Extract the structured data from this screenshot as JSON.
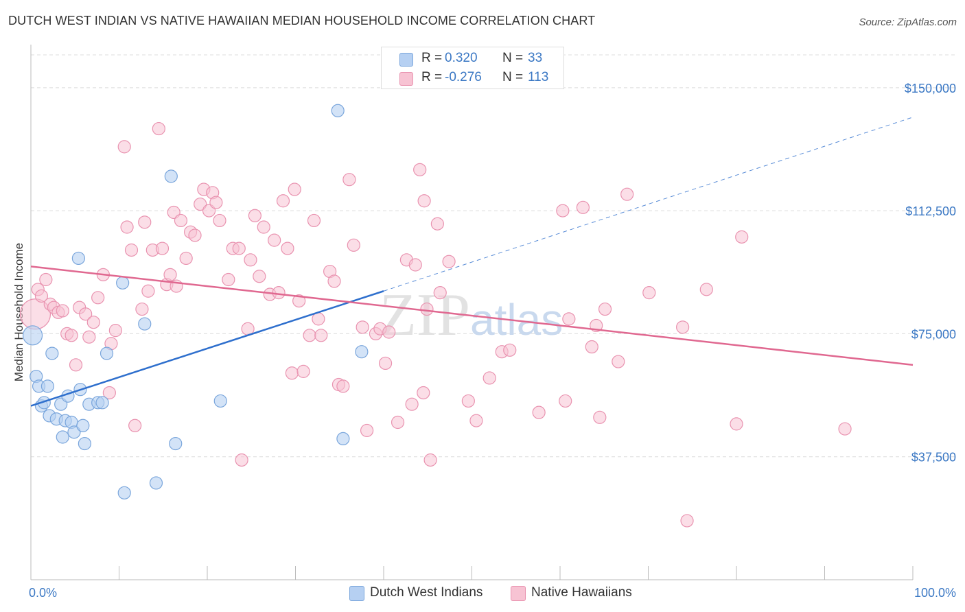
{
  "title": "DUTCH WEST INDIAN VS NATIVE HAWAIIAN MEDIAN HOUSEHOLD INCOME CORRELATION CHART",
  "source": "Source: ZipAtlas.com",
  "watermark": "ZIPatlas",
  "colors": {
    "blue_fill": "#b6d0f2",
    "blue_stroke": "#7aa6dc",
    "blue_line": "#2e6fcd",
    "pink_fill": "#f7c3d3",
    "pink_stroke": "#e993b0",
    "pink_line": "#e06890",
    "tick_text": "#3b78c4",
    "grid": "#dcdcdc"
  },
  "legend_top": {
    "rows": [
      {
        "r_label": "R =",
        "r_value": "0.320",
        "n_label": "N =",
        "n_value": "33",
        "series": "blue"
      },
      {
        "r_label": "R =",
        "r_value": "-0.276",
        "n_label": "N =",
        "n_value": "113",
        "series": "pink"
      }
    ]
  },
  "legend_bottom": {
    "items": [
      {
        "label": "Dutch West Indians",
        "series": "blue"
      },
      {
        "label": "Native Hawaiians",
        "series": "pink"
      }
    ]
  },
  "chart_data": {
    "type": "scatter",
    "title": "DUTCH WEST INDIAN VS NATIVE HAWAIIAN MEDIAN HOUSEHOLD INCOME CORRELATION CHART",
    "xlabel": "",
    "ylabel": "Median Household Income",
    "xlim": [
      0,
      100
    ],
    "ylim": [
      0,
      160000
    ],
    "x_tick_labels": [
      "0.0%",
      "100.0%"
    ],
    "y_ticks": [
      37500,
      75000,
      112500,
      150000
    ],
    "y_tick_labels": [
      "$37,500",
      "$75,000",
      "$112,500",
      "$150,000"
    ],
    "grid": true,
    "legend_placement": "top-center",
    "series": [
      {
        "name": "Dutch West Indians",
        "color": "blue",
        "points": [
          [
            0.2,
            74500
          ],
          [
            0.6,
            62000
          ],
          [
            0.9,
            59000
          ],
          [
            1.2,
            53000
          ],
          [
            1.5,
            54000
          ],
          [
            1.9,
            59000
          ],
          [
            2.1,
            50000
          ],
          [
            2.4,
            69000
          ],
          [
            2.9,
            49000
          ],
          [
            3.4,
            53500
          ],
          [
            3.6,
            43500
          ],
          [
            3.9,
            48500
          ],
          [
            4.2,
            56000
          ],
          [
            4.6,
            48000
          ],
          [
            4.9,
            45000
          ],
          [
            5.4,
            98000
          ],
          [
            5.6,
            58000
          ],
          [
            5.9,
            47000
          ],
          [
            6.1,
            41500
          ],
          [
            6.6,
            53500
          ],
          [
            7.6,
            54000
          ],
          [
            8.1,
            54000
          ],
          [
            8.6,
            69000
          ],
          [
            10.4,
            90500
          ],
          [
            10.6,
            26500
          ],
          [
            12.9,
            78000
          ],
          [
            14.2,
            29500
          ],
          [
            15.9,
            123000
          ],
          [
            16.4,
            41500
          ],
          [
            21.5,
            54500
          ],
          [
            34.8,
            143000
          ],
          [
            35.4,
            43000
          ],
          [
            37.5,
            69500
          ]
        ],
        "trend": {
          "x_start": 0,
          "y_start": 53000,
          "x_end": 40,
          "y_end": 88000,
          "dashed_to_x": 100,
          "dashed_to_y": 141000
        }
      },
      {
        "name": "Native Hawaiians",
        "color": "pink",
        "points": [
          [
            0.5,
            81000
          ],
          [
            0.8,
            88500
          ],
          [
            1.2,
            86500
          ],
          [
            1.7,
            91500
          ],
          [
            2.2,
            84000
          ],
          [
            2.6,
            83000
          ],
          [
            3.1,
            81500
          ],
          [
            3.6,
            82000
          ],
          [
            4.1,
            75000
          ],
          [
            4.6,
            74500
          ],
          [
            5.1,
            65500
          ],
          [
            5.5,
            83000
          ],
          [
            6.2,
            81000
          ],
          [
            6.6,
            74000
          ],
          [
            7.1,
            78500
          ],
          [
            7.6,
            86000
          ],
          [
            8.2,
            93000
          ],
          [
            8.9,
            57000
          ],
          [
            9.1,
            72000
          ],
          [
            9.6,
            76000
          ],
          [
            10.6,
            132000
          ],
          [
            10.9,
            107500
          ],
          [
            11.4,
            100500
          ],
          [
            11.8,
            47000
          ],
          [
            12.6,
            82500
          ],
          [
            12.9,
            109000
          ],
          [
            13.3,
            88000
          ],
          [
            13.8,
            100500
          ],
          [
            14.5,
            137500
          ],
          [
            14.9,
            101000
          ],
          [
            15.4,
            90000
          ],
          [
            15.8,
            93000
          ],
          [
            16.2,
            112000
          ],
          [
            16.5,
            89500
          ],
          [
            17.0,
            109500
          ],
          [
            17.6,
            98000
          ],
          [
            18.1,
            106000
          ],
          [
            18.6,
            105000
          ],
          [
            19.2,
            114500
          ],
          [
            19.6,
            119000
          ],
          [
            20.2,
            112500
          ],
          [
            20.6,
            118000
          ],
          [
            21.0,
            115000
          ],
          [
            21.4,
            109500
          ],
          [
            22.4,
            91500
          ],
          [
            22.9,
            101000
          ],
          [
            23.6,
            101000
          ],
          [
            23.9,
            36500
          ],
          [
            24.6,
            76500
          ],
          [
            24.9,
            97500
          ],
          [
            25.4,
            111000
          ],
          [
            25.9,
            92500
          ],
          [
            26.4,
            107500
          ],
          [
            27.1,
            87000
          ],
          [
            27.6,
            103500
          ],
          [
            28.1,
            87500
          ],
          [
            28.6,
            115500
          ],
          [
            29.1,
            101000
          ],
          [
            29.6,
            63000
          ],
          [
            29.9,
            119000
          ],
          [
            30.4,
            85000
          ],
          [
            30.9,
            63500
          ],
          [
            31.6,
            74500
          ],
          [
            32.1,
            109500
          ],
          [
            32.6,
            79500
          ],
          [
            32.9,
            74500
          ],
          [
            33.9,
            94000
          ],
          [
            34.4,
            91000
          ],
          [
            34.9,
            59500
          ],
          [
            35.4,
            59000
          ],
          [
            36.1,
            122000
          ],
          [
            36.6,
            102000
          ],
          [
            37.6,
            77000
          ],
          [
            38.1,
            45500
          ],
          [
            39.1,
            75000
          ],
          [
            39.6,
            76500
          ],
          [
            40.2,
            66000
          ],
          [
            40.6,
            75500
          ],
          [
            41.6,
            48000
          ],
          [
            42.6,
            97500
          ],
          [
            43.2,
            53500
          ],
          [
            43.6,
            96000
          ],
          [
            44.1,
            125000
          ],
          [
            44.5,
            57000
          ],
          [
            44.6,
            115500
          ],
          [
            44.9,
            82500
          ],
          [
            45.3,
            36500
          ],
          [
            46.1,
            108500
          ],
          [
            46.4,
            87500
          ],
          [
            47.4,
            97000
          ],
          [
            49.6,
            54500
          ],
          [
            50.5,
            48500
          ],
          [
            52.0,
            61500
          ],
          [
            53.4,
            69500
          ],
          [
            54.3,
            70000
          ],
          [
            57.6,
            51000
          ],
          [
            60.3,
            112500
          ],
          [
            60.6,
            54500
          ],
          [
            61.0,
            79500
          ],
          [
            62.6,
            113500
          ],
          [
            63.6,
            71000
          ],
          [
            64.1,
            77500
          ],
          [
            64.5,
            49500
          ],
          [
            65.1,
            82500
          ],
          [
            66.6,
            66500
          ],
          [
            67.6,
            117500
          ],
          [
            70.1,
            87500
          ],
          [
            73.9,
            77000
          ],
          [
            74.4,
            18000
          ],
          [
            76.6,
            88500
          ],
          [
            80.0,
            47500
          ],
          [
            80.6,
            104500
          ],
          [
            92.3,
            46000
          ]
        ],
        "trend": {
          "x_start": 0,
          "y_start": 95500,
          "x_end": 100,
          "y_end": 65500
        }
      }
    ]
  }
}
